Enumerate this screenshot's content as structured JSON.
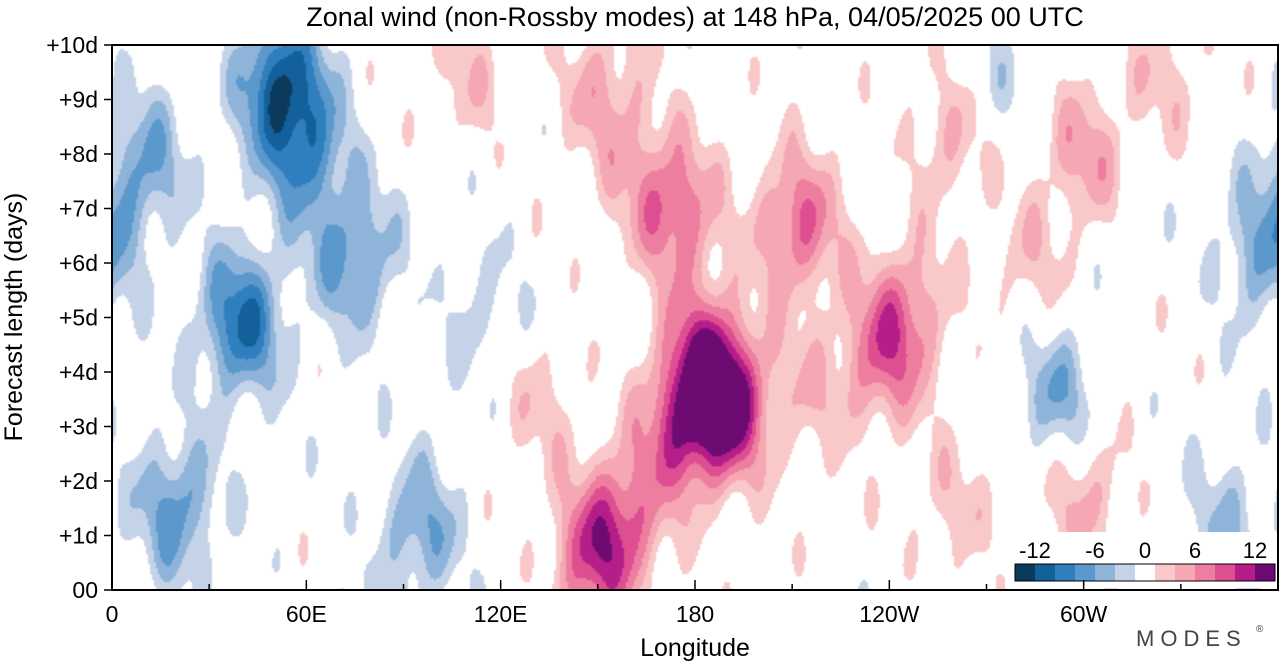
{
  "chart_data": {
    "type": "heatmap",
    "title": "Zonal wind (non-Rossby modes) at 148 hPa,  04/05/2025  00 UTC",
    "xlabel": "Longitude",
    "ylabel": "Forecast length (days)",
    "x_ticks": [
      "0",
      "60E",
      "120E",
      "180",
      "120W",
      "60W"
    ],
    "x_tick_values": [
      0,
      60,
      120,
      180,
      240,
      300
    ],
    "xlim": [
      0,
      360
    ],
    "y_ticks": [
      "00",
      "+1d",
      "+2d",
      "+3d",
      "+4d",
      "+5d",
      "+6d",
      "+7d",
      "+8d",
      "+9d",
      "+10d"
    ],
    "y_tick_values": [
      0,
      1,
      2,
      3,
      4,
      5,
      6,
      7,
      8,
      9,
      10
    ],
    "ylim": [
      0,
      10
    ],
    "colorbar": {
      "ticks": [
        "-12",
        "-6",
        "0",
        "6",
        "12"
      ],
      "tick_values": [
        -12,
        -6,
        0,
        6,
        12
      ],
      "levels": [
        -14,
        -12,
        -10,
        -8,
        -6,
        -4,
        -2,
        2,
        4,
        6,
        8,
        10,
        12,
        14
      ],
      "colors": [
        "#0b3a5c",
        "#14609a",
        "#2f7fbf",
        "#5b98cc",
        "#8fb4da",
        "#c5d3e8",
        "#ffffff",
        "#f9c8c8",
        "#f5a7b4",
        "#ee7ea0",
        "#de4f92",
        "#b51e88",
        "#6e0b72"
      ]
    },
    "features": [
      {
        "lon": 52,
        "day": 9.3,
        "value": -11
      },
      {
        "lon": 40,
        "day": 4.9,
        "value": -10
      },
      {
        "lon": 60,
        "day": 8.0,
        "value": -7
      },
      {
        "lon": 75,
        "day": 6.1,
        "value": -7
      },
      {
        "lon": 20,
        "day": 1.5,
        "value": -7
      },
      {
        "lon": 95,
        "day": 1.1,
        "value": -6
      },
      {
        "lon": 10,
        "day": 7.8,
        "value": -6
      },
      {
        "lon": 293,
        "day": 3.5,
        "value": -6
      },
      {
        "lon": 355,
        "day": 6.2,
        "value": -6
      },
      {
        "lon": 345,
        "day": 1.2,
        "value": -4
      },
      {
        "lon": 270,
        "day": 9.2,
        "value": -3
      },
      {
        "lon": 115,
        "day": 5.0,
        "value": -3
      },
      {
        "lon": 190,
        "day": 3.3,
        "value": 11
      },
      {
        "lon": 183,
        "day": 4.1,
        "value": 10
      },
      {
        "lon": 175,
        "day": 2.9,
        "value": 7
      },
      {
        "lon": 148,
        "day": 0.5,
        "value": 8
      },
      {
        "lon": 158,
        "day": 1.3,
        "value": 7
      },
      {
        "lon": 175,
        "day": 6.9,
        "value": 7
      },
      {
        "lon": 212,
        "day": 6.7,
        "value": 8
      },
      {
        "lon": 245,
        "day": 5.1,
        "value": 6
      },
      {
        "lon": 237,
        "day": 4.2,
        "value": 6
      },
      {
        "lon": 300,
        "day": 8.0,
        "value": 5
      },
      {
        "lon": 260,
        "day": 8.4,
        "value": 5
      },
      {
        "lon": 152,
        "day": 9.1,
        "value": 5
      },
      {
        "lon": 300,
        "day": 1.9,
        "value": 5
      },
      {
        "lon": 165,
        "day": 7.5,
        "value": 3
      },
      {
        "lon": 132,
        "day": 3.4,
        "value": 3
      },
      {
        "lon": 215,
        "day": 3.6,
        "value": 3
      },
      {
        "lon": 283,
        "day": 6.0,
        "value": 3
      },
      {
        "lon": 260,
        "day": 1.5,
        "value": 3
      },
      {
        "lon": 325,
        "day": 9.5,
        "value": 3
      },
      {
        "lon": 110,
        "day": 9.4,
        "value": 3
      }
    ]
  },
  "branding": {
    "logo_text": "MODES"
  }
}
